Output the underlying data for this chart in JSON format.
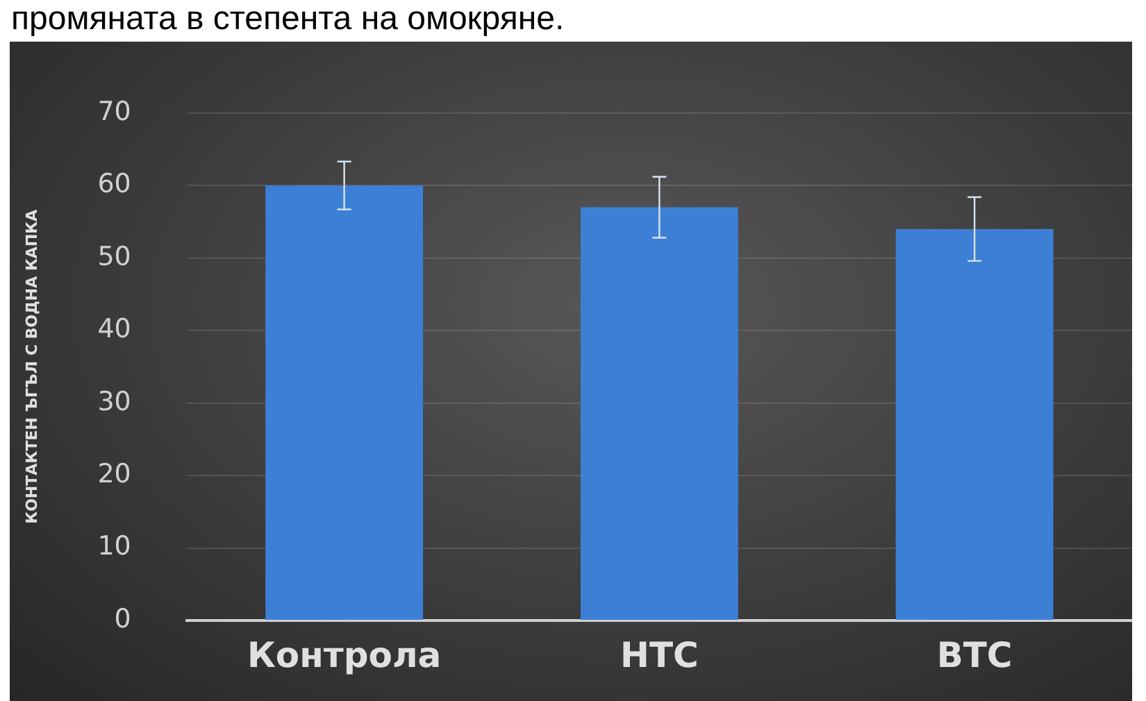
{
  "chart_data": {
    "type": "bar",
    "ylabel": "КОНТАКТЕН ЪГЪЛ С ВОДНА КАПКА",
    "categories": [
      "Контрола",
      "НТС",
      "ВТС"
    ],
    "values": [
      60,
      57,
      54
    ],
    "errors": [
      3.3,
      4.2,
      4.4
    ],
    "color": "#3d7fd4",
    "ylim": [
      0,
      70
    ],
    "yticks": [
      0,
      10,
      20,
      30,
      40,
      50,
      60,
      70
    ],
    "grid": "y",
    "annotations": [
      "промяната в степента на омокряне."
    ]
  }
}
